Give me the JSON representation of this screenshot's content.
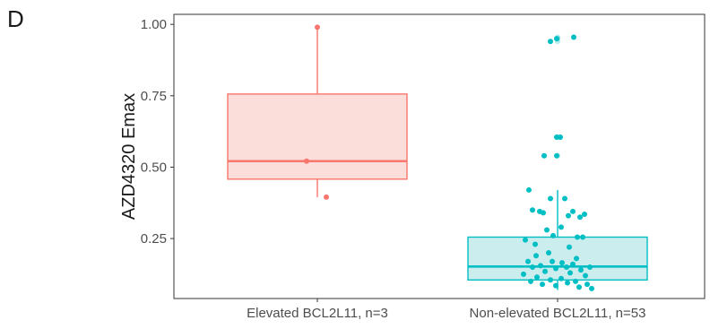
{
  "panel_label": "D",
  "chart_data": {
    "type": "box",
    "title": "",
    "xlabel": "",
    "ylabel": "AZD4320 Emax",
    "ylim": [
      0.04,
      1.035
    ],
    "yticks": [
      0.25,
      0.5,
      0.75,
      1.0
    ],
    "ytick_labels": [
      "0.25",
      "0.50",
      "0.75",
      "1.00"
    ],
    "grid": false,
    "legend": "none",
    "categories": [
      "Elevated BCL2L11, n=3",
      "Non-elevated BCL2L11, n=53"
    ],
    "series": [
      {
        "category": "Elevated BCL2L11, n=3",
        "color": "#F8766D",
        "fill": "#FBDDDA",
        "box": {
          "min": 0.395,
          "q1": 0.458,
          "median": 0.521,
          "q3": 0.756,
          "max": 0.99
        },
        "points": [
          {
            "x": 0.0,
            "y": 0.99
          },
          {
            "x": -0.12,
            "y": 0.521
          },
          {
            "x": 0.1,
            "y": 0.395
          }
        ]
      },
      {
        "category": "Non-elevated BCL2L11, n=53",
        "color": "#00BFC4",
        "fill": "#CCEDEE",
        "box": {
          "min": 0.07,
          "q1": 0.105,
          "median": 0.152,
          "q3": 0.255,
          "max": 0.42
        },
        "outliers": [
          0.94,
          0.95,
          0.955,
          0.605,
          0.54
        ],
        "points": [
          {
            "x": -0.08,
            "y": 0.94
          },
          {
            "x": -0.01,
            "y": 0.95
          },
          {
            "x": 0.18,
            "y": 0.955
          },
          {
            "x": -0.01,
            "y": 0.605
          },
          {
            "x": 0.03,
            "y": 0.605
          },
          {
            "x": -0.15,
            "y": 0.54
          },
          {
            "x": -0.01,
            "y": 0.54
          },
          {
            "x": -0.32,
            "y": 0.42
          },
          {
            "x": 0.08,
            "y": 0.39
          },
          {
            "x": -0.08,
            "y": 0.39
          },
          {
            "x": -0.28,
            "y": 0.35
          },
          {
            "x": 0.17,
            "y": 0.345
          },
          {
            "x": -0.2,
            "y": 0.345
          },
          {
            "x": 0.12,
            "y": 0.33
          },
          {
            "x": 0.3,
            "y": 0.335
          },
          {
            "x": 0.25,
            "y": 0.325
          },
          {
            "x": -0.16,
            "y": 0.34
          },
          {
            "x": 0.04,
            "y": 0.29
          },
          {
            "x": -0.12,
            "y": 0.28
          },
          {
            "x": -0.05,
            "y": 0.26
          },
          {
            "x": 0.22,
            "y": 0.255
          },
          {
            "x": 0.28,
            "y": 0.255
          },
          {
            "x": -0.36,
            "y": 0.245
          },
          {
            "x": -0.25,
            "y": 0.23
          },
          {
            "x": 0.13,
            "y": 0.22
          },
          {
            "x": -0.1,
            "y": 0.2
          },
          {
            "x": -0.24,
            "y": 0.19
          },
          {
            "x": 0.21,
            "y": 0.18
          },
          {
            "x": -0.33,
            "y": 0.17
          },
          {
            "x": -0.06,
            "y": 0.17
          },
          {
            "x": 0.05,
            "y": 0.165
          },
          {
            "x": 0.17,
            "y": 0.16
          },
          {
            "x": -0.19,
            "y": 0.155
          },
          {
            "x": 0.1,
            "y": 0.15
          },
          {
            "x": -0.28,
            "y": 0.15
          },
          {
            "x": 0.36,
            "y": 0.15
          },
          {
            "x": -0.02,
            "y": 0.145
          },
          {
            "x": 0.26,
            "y": 0.14
          },
          {
            "x": -0.14,
            "y": 0.135
          },
          {
            "x": 0.14,
            "y": 0.13
          },
          {
            "x": -0.38,
            "y": 0.125
          },
          {
            "x": 0.31,
            "y": 0.12
          },
          {
            "x": -0.23,
            "y": 0.115
          },
          {
            "x": 0.04,
            "y": 0.11
          },
          {
            "x": -0.08,
            "y": 0.105
          },
          {
            "x": 0.2,
            "y": 0.1
          },
          {
            "x": -0.3,
            "y": 0.1
          },
          {
            "x": 0.11,
            "y": 0.095
          },
          {
            "x": -0.17,
            "y": 0.09
          },
          {
            "x": 0.33,
            "y": 0.09
          },
          {
            "x": -0.02,
            "y": 0.085
          },
          {
            "x": 0.24,
            "y": 0.08
          },
          {
            "x": 0.38,
            "y": 0.075
          }
        ]
      }
    ]
  }
}
